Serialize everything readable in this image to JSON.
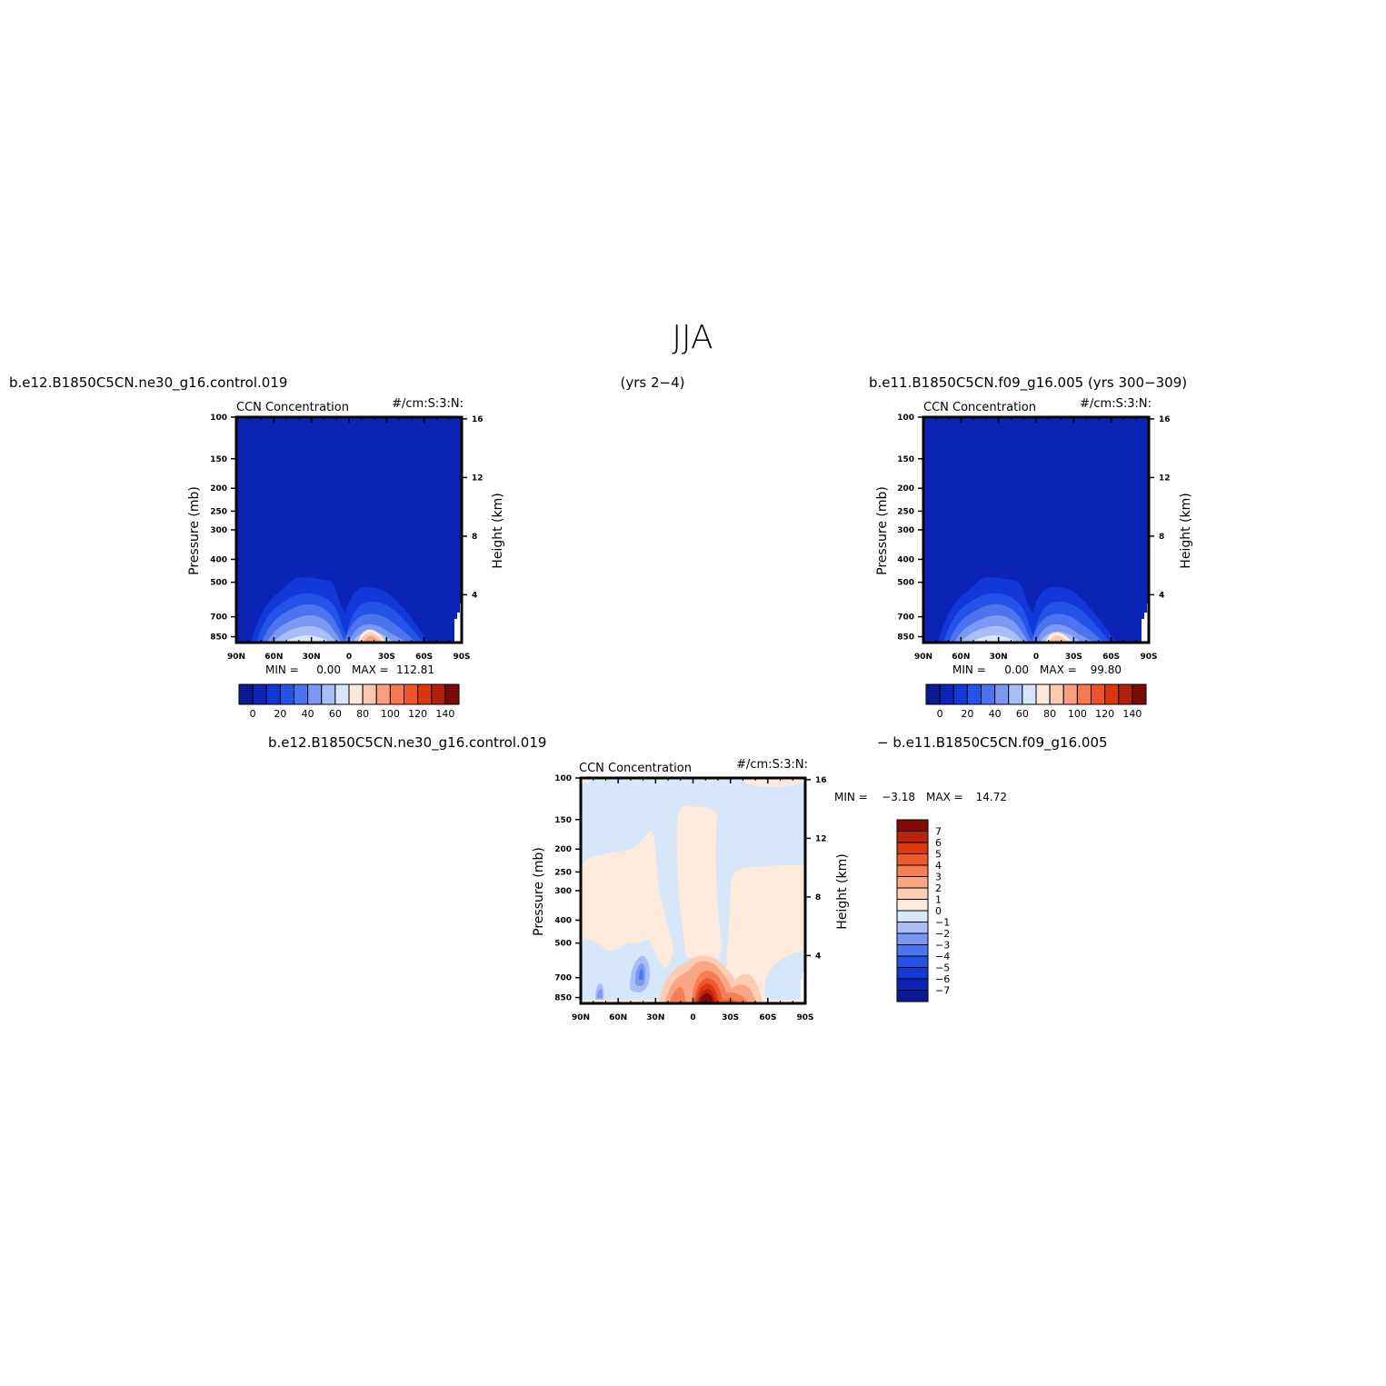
{
  "title": "JJA",
  "top_left_case": "b.e12.B1850C5CN.ne30_g16.control.019",
  "top_center_years": "(yrs 2−4)",
  "top_right_case": "b.e11.B1850C5CN.f09_g16.005 (yrs 300−309)",
  "bottom_left_case": "b.e12.B1850C5CN.ne30_g16.control.019",
  "bottom_right_case": "− b.e11.B1850C5CN.f09_g16.005",
  "colors": {
    "abs_palette": [
      "#0a1a8f",
      "#0b24b5",
      "#1238d8",
      "#2453e8",
      "#4c74ef",
      "#7b98f2",
      "#a9bef6",
      "#d8e6fb",
      "#fde8dc",
      "#fcc8b0",
      "#faa080",
      "#f57a52",
      "#ee5329",
      "#d9350f",
      "#b3200a",
      "#7a0a05"
    ],
    "diff_palette": [
      "#0a1a8f",
      "#0b24b5",
      "#1238d8",
      "#2453e8",
      "#4c74ef",
      "#7b98f2",
      "#a9bef6",
      "#d6e6fb",
      "#fdeadb",
      "#fcccb3",
      "#faa583",
      "#f57e55",
      "#ef5a2c",
      "#db3912",
      "#b8230b",
      "#820b05"
    ]
  },
  "chart_data": [
    {
      "type": "contour",
      "id": "top-left",
      "title_left": "CCN Concentration",
      "title_right": "#/cm:S:3:N:",
      "xlabel": "",
      "ylabel": "Pressure (mb)",
      "y2label": "Height (km)",
      "x_ticks": [
        "90N",
        "60N",
        "30N",
        "0",
        "30S",
        "60S",
        "90S"
      ],
      "y_ticks": [
        100,
        150,
        200,
        250,
        300,
        400,
        500,
        700,
        850
      ],
      "y2_ticks": [
        16,
        12,
        8,
        4
      ],
      "min_label": "MIN =",
      "min_value": "0.00",
      "max_label": "MAX =",
      "max_value": "112.81",
      "colorbar_labels": [
        "0",
        "20",
        "40",
        "60",
        "80",
        "100",
        "120",
        "140"
      ],
      "colorbar_orientation": "horizontal"
    },
    {
      "type": "contour",
      "id": "top-right",
      "title_left": "CCN Concentration",
      "title_right": "#/cm:S:3:N:",
      "xlabel": "",
      "ylabel": "Pressure (mb)",
      "y2label": "Height (km)",
      "x_ticks": [
        "90N",
        "60N",
        "30N",
        "0",
        "30S",
        "60S",
        "90S"
      ],
      "y_ticks": [
        100,
        150,
        200,
        250,
        300,
        400,
        500,
        700,
        850
      ],
      "y2_ticks": [
        16,
        12,
        8,
        4
      ],
      "min_label": "MIN =",
      "min_value": "0.00",
      "max_label": "MAX =",
      "max_value": "99.80",
      "colorbar_labels": [
        "0",
        "20",
        "40",
        "60",
        "80",
        "100",
        "120",
        "140"
      ],
      "colorbar_orientation": "horizontal"
    },
    {
      "type": "contour",
      "id": "difference",
      "title_left": "CCN Concentration",
      "title_right": "#/cm:S:3:N:",
      "xlabel": "",
      "ylabel": "Pressure (mb)",
      "y2label": "Height (km)",
      "x_ticks": [
        "90N",
        "60N",
        "30N",
        "0",
        "30S",
        "60S",
        "90S"
      ],
      "y_ticks": [
        100,
        150,
        200,
        250,
        300,
        400,
        500,
        700,
        850
      ],
      "y2_ticks": [
        16,
        12,
        8,
        4
      ],
      "min_label": "MIN =",
      "min_value": "−3.18",
      "max_label": "MAX =",
      "max_value": "14.72",
      "colorbar_labels": [
        "7",
        "6",
        "5",
        "4",
        "3",
        "2",
        "1",
        "0",
        "−1",
        "−2",
        "−3",
        "−4",
        "−5",
        "−6",
        "−7"
      ],
      "colorbar_orientation": "vertical"
    }
  ]
}
